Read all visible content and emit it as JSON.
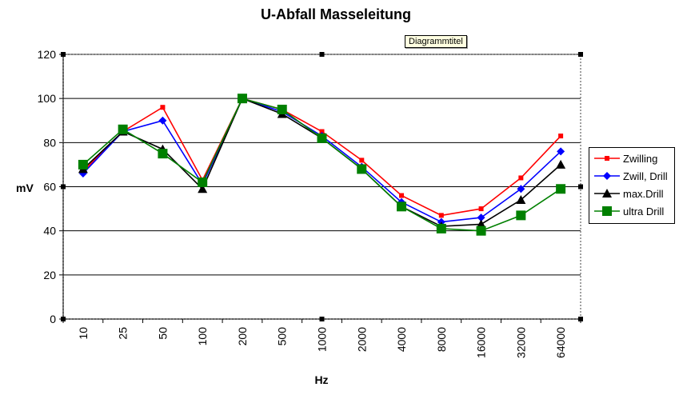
{
  "chart_data": {
    "type": "line",
    "title": "U-Abfall Masseleitung",
    "xlabel": "Hz",
    "ylabel": "mV",
    "ylim": [
      0,
      120
    ],
    "yticks": [
      0,
      20,
      40,
      60,
      80,
      100,
      120
    ],
    "grid": true,
    "legend_position": "right",
    "categories": [
      "10",
      "25",
      "50",
      "100",
      "200",
      "500",
      "1000",
      "2000",
      "4000",
      "8000",
      "16000",
      "32000",
      "64000"
    ],
    "series": [
      {
        "name": "Zwilling",
        "color": "#ff0000",
        "marker": "square-small",
        "values": [
          67,
          85,
          96,
          63,
          100,
          95,
          85,
          72,
          56,
          47,
          50,
          64,
          83
        ]
      },
      {
        "name": "Zwill, Drill",
        "color": "#0000ff",
        "marker": "diamond",
        "values": [
          66,
          85,
          90,
          61,
          100,
          94,
          83,
          69,
          53,
          44,
          46,
          59,
          76
        ]
      },
      {
        "name": "max.Drill",
        "color": "#000000",
        "marker": "triangle",
        "values": [
          68,
          85,
          77,
          59,
          100,
          93,
          82,
          68,
          51,
          42,
          43,
          54,
          70
        ]
      },
      {
        "name": "ultra Drill",
        "color": "#008000",
        "marker": "square-large",
        "values": [
          70,
          86,
          75,
          62,
          100,
          95,
          82,
          68,
          51,
          41,
          40,
          47,
          59
        ]
      }
    ]
  },
  "tooltip": {
    "text": "Diagrammtitel"
  }
}
